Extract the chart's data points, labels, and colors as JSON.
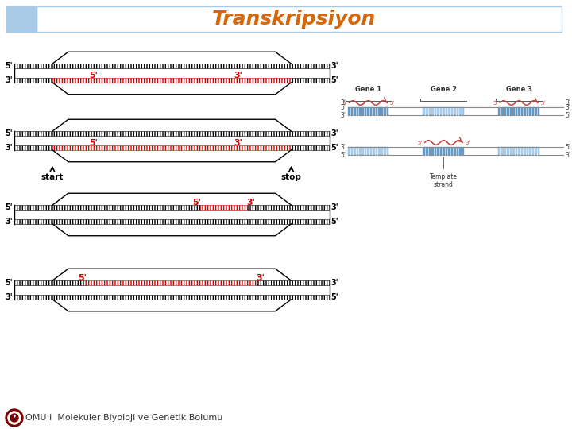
{
  "title": "Transkripsiyon",
  "title_color": "#D4680A",
  "title_fontsize": 18,
  "bg_color": "#ffffff",
  "header_blue": "#A8CBE8",
  "header_border": "#A8CBE8",
  "footer_text": "OMU I  Molekuler Biyoloji ve Genetik Bolumu",
  "footer_fontsize": 8,
  "gene_labels": [
    "Gene 1",
    "Gene 2",
    "Gene 3"
  ],
  "black": "#000000",
  "red": "#cc0000",
  "gray": "#888888",
  "gene_blue_dark": "#4C86B8",
  "gene_blue_light": "#9DC3E6",
  "gene_blue_mid": "#6BAED6"
}
